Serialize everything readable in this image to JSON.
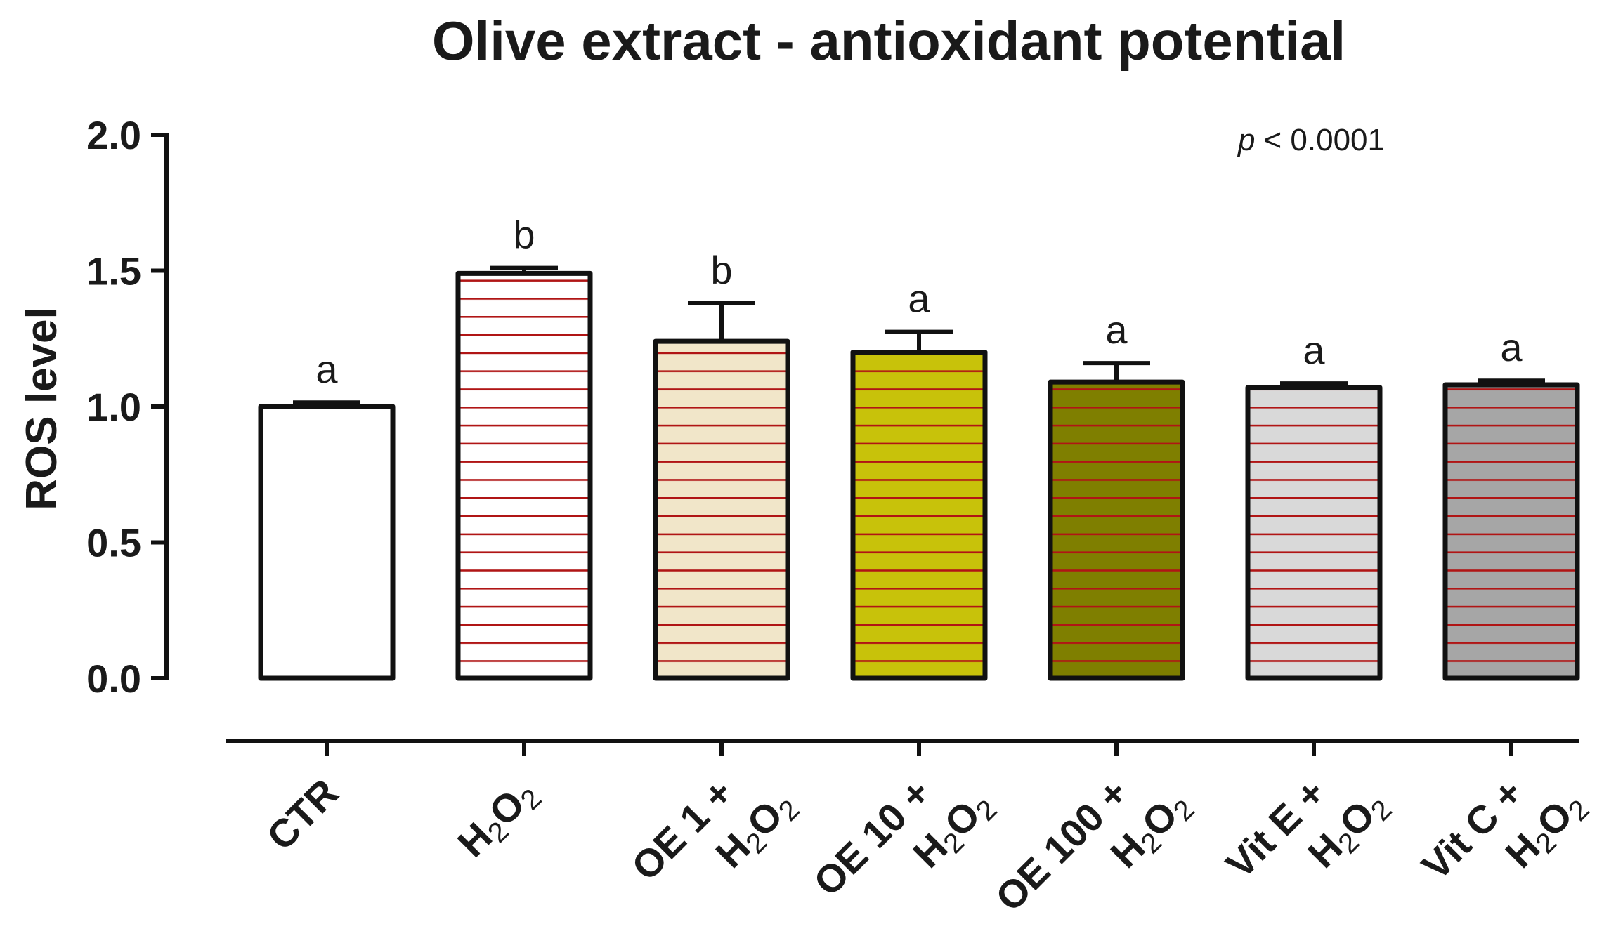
{
  "chart_data": {
    "type": "bar",
    "title": "Olive extract - antioxidant potential",
    "ylabel": "ROS level",
    "xlabel": "",
    "ylim": [
      0,
      2.0
    ],
    "yticks": [
      "0.0",
      "0.5",
      "1.0",
      "1.5",
      "2.0"
    ],
    "ytick_values": [
      0,
      0.5,
      1.0,
      1.5,
      2.0
    ],
    "annotation": {
      "p_symbol": "p",
      "p_text": "< 0.0001"
    },
    "categories": [
      {
        "line1": "CTR",
        "line2": "",
        "h2o2_line": 0
      },
      {
        "line1": "",
        "line2": "",
        "h2o2_line": 1
      },
      {
        "line1": "OE 1 +",
        "line2": "",
        "h2o2_line": 2
      },
      {
        "line1": "OE 10 +",
        "line2": "",
        "h2o2_line": 2
      },
      {
        "line1": "OE 100 +",
        "line2": "",
        "h2o2_line": 2
      },
      {
        "line1": "Vit E +",
        "line2": "",
        "h2o2_line": 2
      },
      {
        "line1": "Vit C +",
        "line2": "",
        "h2o2_line": 2
      }
    ],
    "h2o2": {
      "h": "H",
      "sub": "2",
      "o": "O",
      "sub2": "2"
    },
    "values": [
      1.0,
      1.49,
      1.24,
      1.2,
      1.09,
      1.07,
      1.08
    ],
    "errors": [
      0.015,
      0.02,
      0.14,
      0.075,
      0.07,
      0.015,
      0.015
    ],
    "significance": [
      "a",
      "b",
      "b",
      "a",
      "a",
      "a",
      "a"
    ],
    "colors": [
      "#ffffff",
      "#ffffff",
      "#f1e6c9",
      "#c8c20a",
      "#7f7f00",
      "#d9d9d9",
      "#a6a6a6"
    ],
    "hatched": [
      false,
      true,
      true,
      true,
      true,
      true,
      true
    ],
    "hatch_color": "#b01515",
    "outline_color": "#111111"
  }
}
